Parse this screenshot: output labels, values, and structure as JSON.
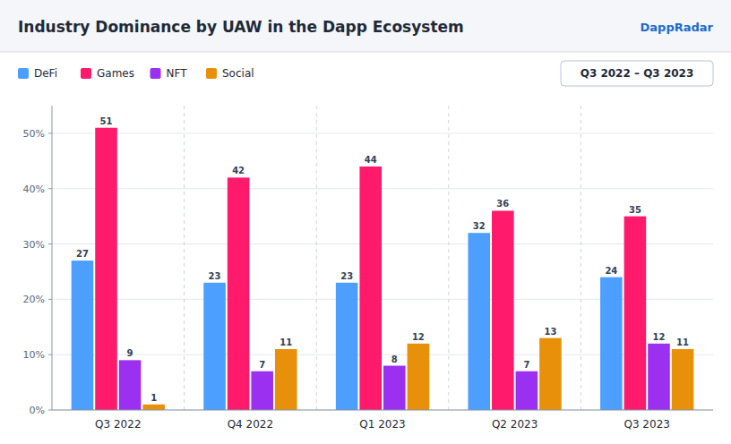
{
  "chart_data": {
    "type": "bar",
    "title": "Industry Dominance by UAW in the Dapp Ecosystem",
    "annotations": [
      "Q3 2022 – Q3 2023",
      "DappRadar"
    ],
    "categories": [
      "Q3 2022",
      "Q4 2022",
      "Q1 2023",
      "Q2 2023",
      "Q3 2023"
    ],
    "series": [
      {
        "name": "DeFi",
        "color": "#4d9fff",
        "values": [
          27,
          23,
          23,
          32,
          24
        ]
      },
      {
        "name": "Games",
        "color": "#ff1a6b",
        "values": [
          51,
          42,
          44,
          36,
          35
        ]
      },
      {
        "name": "NFT",
        "color": "#9b30f0",
        "values": [
          9,
          7,
          8,
          7,
          12
        ]
      },
      {
        "name": "Social",
        "color": "#e8900a",
        "values": [
          1,
          11,
          12,
          13,
          11
        ]
      }
    ],
    "ylim": [
      0,
      55
    ],
    "yticks": [
      {
        "value": 0,
        "label": "0%"
      },
      {
        "value": 10,
        "label": "10%"
      },
      {
        "value": 20,
        "label": "20%"
      },
      {
        "value": 30,
        "label": "30%"
      },
      {
        "value": 40,
        "label": "40%"
      },
      {
        "value": 50,
        "label": "50%"
      }
    ],
    "grid": true,
    "legend": "top",
    "data_labels": true
  }
}
